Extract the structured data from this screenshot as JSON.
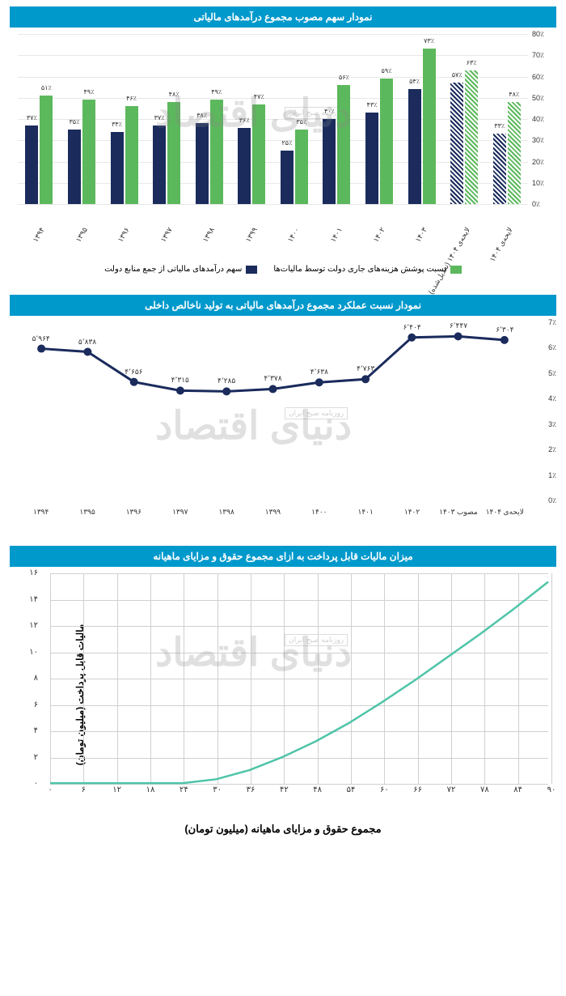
{
  "chart1": {
    "title": "نمودار سهم مصوب مجموع درآمدهای مالیاتی",
    "type": "bar",
    "ylim": [
      0,
      80
    ],
    "ytick_step": 10,
    "ytick_suffix": "٪",
    "categories": [
      "۱۳۹۴",
      "۱۳۹۵",
      "۱۳۹۶",
      "۱۳۹۷",
      "۱۳۹۸",
      "۱۳۹۹",
      "۱۴۰۰",
      "۱۴۰۱",
      "۱۴۰۲",
      "۱۴۰۳",
      "لایحه‌ی ۱۴۰۴ (تعدیل‌شده)",
      "لایحه‌ی ۱۴۰۴"
    ],
    "series": [
      {
        "name": "نسبت پوشش هزینه‌های جاری دولت توسط مالیات‌ها",
        "color": "#5cb85c",
        "hatched_last": 2,
        "values": [
          51,
          49,
          46,
          48,
          49,
          47,
          35,
          56,
          59,
          73,
          63,
          48
        ],
        "labels": [
          "۵۱٪",
          "۴۹٪",
          "۴۶٪",
          "۴۸٪",
          "۴۹٪",
          "۴۷٪",
          "۳۵٪",
          "۵۶٪",
          "۵۹٪",
          "۷۳٪",
          "۶۳٪",
          "۴۸٪"
        ]
      },
      {
        "name": "سهم درآمدهای مالیاتی از جمع منابع دولت",
        "color": "#1a2b5c",
        "hatched_last": 2,
        "values": [
          37,
          35,
          34,
          37,
          38,
          36,
          25,
          40,
          43,
          54,
          57,
          33
        ],
        "labels": [
          "۳۷٪",
          "۳۵٪",
          "۳۴٪",
          "۳۷٪",
          "۳۸٪",
          "۳۶٪",
          "۲۵٪",
          "۴۰٪",
          "۴۳٪",
          "۵۴٪",
          "۵۷٪",
          "۳۳٪"
        ]
      }
    ],
    "grid_color": "#e8e8e8",
    "background": "#ffffff"
  },
  "chart2": {
    "title": "نمودار نسبت عملکرد مجموع درآمدهای مالیاتی به تولید ناخالص داخلی",
    "type": "line",
    "ylim": [
      0,
      7
    ],
    "ytick_step": 1,
    "ytick_suffix": "٪",
    "categories": [
      "۱۳۹۴",
      "۱۳۹۵",
      "۱۳۹۶",
      "۱۳۹۷",
      "۱۳۹۸",
      "۱۳۹۹",
      "۱۴۰۰",
      "۱۴۰۱",
      "۱۴۰۲",
      "مصوب ۱۴۰۳",
      "لایحه‌ی ۱۴۰۴"
    ],
    "values": [
      6.304,
      6.447,
      6.404,
      4.763,
      4.638,
      4.378,
      4.285,
      4.315,
      4.656,
      5.838,
      5.964
    ],
    "point_labels": [
      "۶٬۳۰۴",
      "۶٬۴۴۷",
      "۶٬۴۰۴",
      "۴٬۷۶۳",
      "۴٬۶۳۸",
      "۴٬۳۷۸",
      "۴٬۲۸۵",
      "۴٬۳۱۵",
      "۴٬۶۵۶",
      "۵٬۸۳۸",
      "۵٬۹۶۴"
    ],
    "line_color": "#1a2b5c",
    "marker_color": "#1a2b5c",
    "line_width": 3,
    "marker_size": 5
  },
  "chart3": {
    "title": "میزان مالیات قابل پرداخت به ازای مجموع حقوق و مزایای ماهیانه",
    "type": "line",
    "ylabel": "مالیات قابل پرداخت (میلیون تومان)",
    "xlabel": "مجموع حقوق و مزایای ماهیانه (میلیون تومان)",
    "ylim": [
      0,
      16
    ],
    "ytick_step": 2,
    "xlim": [
      0,
      90
    ],
    "xtick_step": 6,
    "xticks": [
      "۰",
      "۶",
      "۱۲",
      "۱۸",
      "۲۴",
      "۳۰",
      "۳۶",
      "۴۲",
      "۴۸",
      "۵۴",
      "۶۰",
      "۶۶",
      "۷۲",
      "۷۸",
      "۸۴",
      "۹۰"
    ],
    "yticks": [
      "۰",
      "۲",
      "۴",
      "۶",
      "۸",
      "۱۰",
      "۱۲",
      "۱۴",
      "۱۶"
    ],
    "points": [
      [
        0,
        0
      ],
      [
        24,
        0
      ],
      [
        30,
        0.3
      ],
      [
        36,
        1.0
      ],
      [
        42,
        2.0
      ],
      [
        48,
        3.2
      ],
      [
        54,
        4.6
      ],
      [
        60,
        6.2
      ],
      [
        66,
        7.9
      ],
      [
        72,
        9.7
      ],
      [
        78,
        11.5
      ],
      [
        84,
        13.4
      ],
      [
        90,
        15.4
      ]
    ],
    "line_color": "#4fc4a8",
    "line_width": 2.5,
    "grid_color": "#d0d0d0"
  },
  "watermark": "دنیای اقتصاد",
  "watermark_sub": "روزنامه صبح ایران"
}
